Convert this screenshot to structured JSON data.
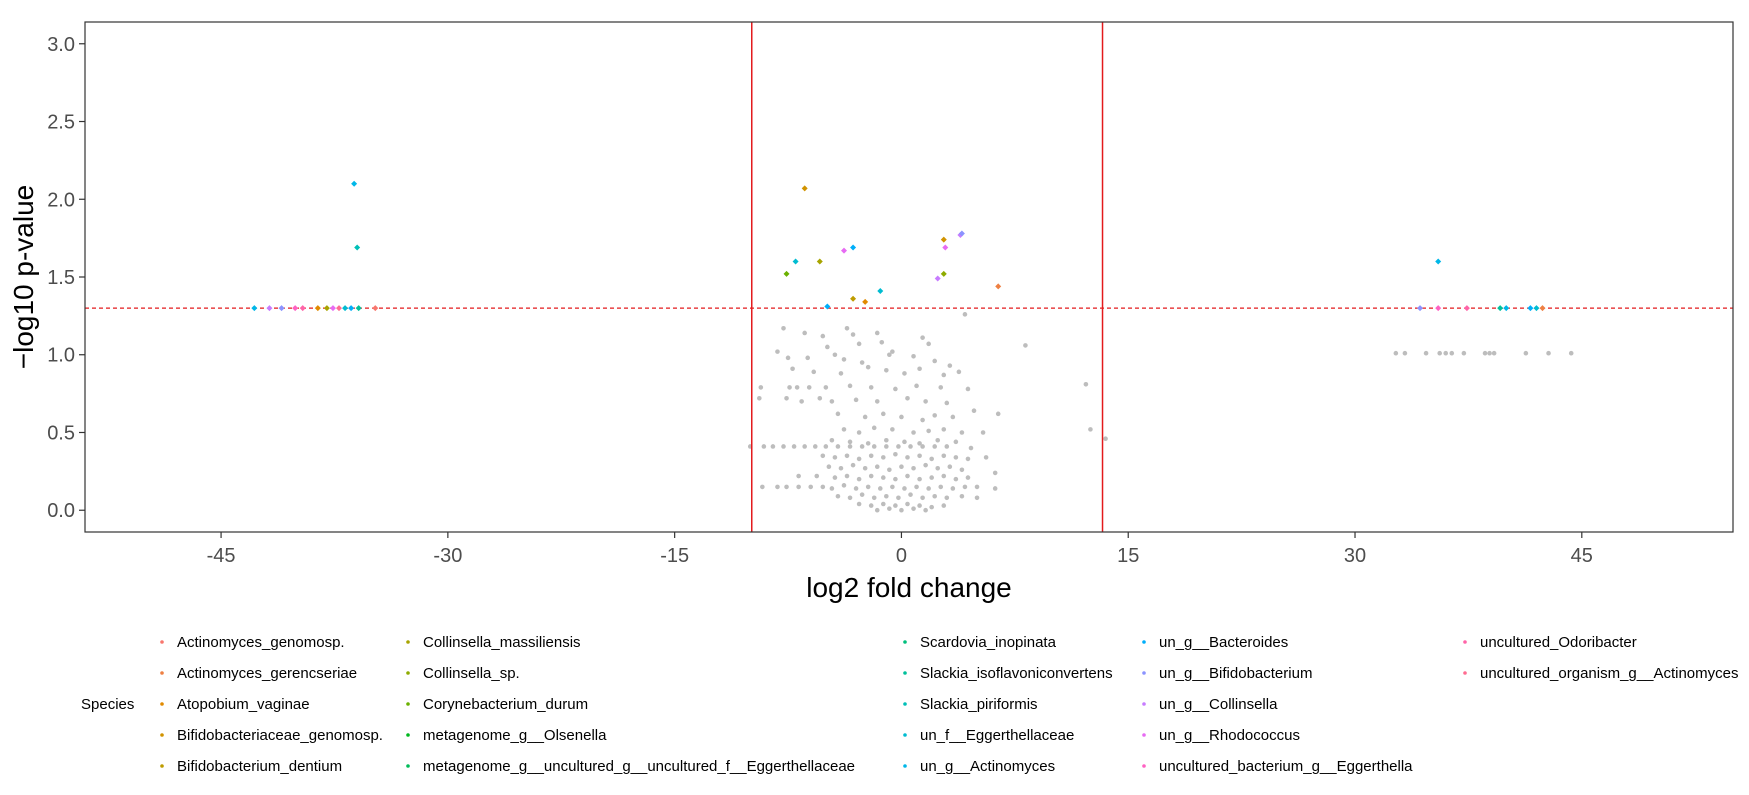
{
  "chart_data": {
    "type": "scatter",
    "title": "",
    "xlabel": "log2 fold change",
    "ylabel": "−log10 p-value",
    "xlim": [
      -54,
      55
    ],
    "ylim": [
      -0.14,
      3.14
    ],
    "x_ticks": [
      -45,
      -30,
      -15,
      0,
      15,
      30,
      45
    ],
    "x_tick_labels": [
      "-45",
      "-30",
      "-15",
      "0",
      "15",
      "30",
      "45"
    ],
    "y_ticks": [
      0,
      0.5,
      1,
      1.5,
      2,
      2.5,
      3
    ],
    "y_tick_labels": [
      "0.0",
      "0.5",
      "1.0",
      "1.5",
      "2.0",
      "2.5",
      "3.0"
    ],
    "grid": false,
    "thresholds": {
      "vertical": [
        -9.9,
        13.3
      ],
      "horizontal": 1.3,
      "color": "#e31a1c"
    },
    "legend": {
      "title": "Species",
      "placement": "bottom",
      "entries": [
        {
          "name": "Actinomyces_genomosp.",
          "color": "#F8766D"
        },
        {
          "name": "Actinomyces_gerencseriae",
          "color": "#EE8043"
        },
        {
          "name": "Atopobium_vaginae",
          "color": "#E18A00"
        },
        {
          "name": "Bifidobacteriaceae_genomosp.",
          "color": "#D19300"
        },
        {
          "name": "Bifidobacterium_dentium",
          "color": "#BE9C00"
        },
        {
          "name": "Collinsella_massiliensis",
          "color": "#A8A400"
        },
        {
          "name": "Collinsella_sp.",
          "color": "#8EAB00"
        },
        {
          "name": "Corynebacterium_durum",
          "color": "#6BB100"
        },
        {
          "name": "metagenome_g__Olsenella",
          "color": "#00B81F"
        },
        {
          "name": "metagenome_g__uncultured_g__uncultured_f__Eggerthellaceae",
          "color": "#00BC59"
        },
        {
          "name": "Scardovia_inopinata",
          "color": "#00BF7D"
        },
        {
          "name": "Slackia_isoflavoniconvertens",
          "color": "#00C09B"
        },
        {
          "name": "Slackia_piriformis",
          "color": "#00BFB7"
        },
        {
          "name": "un_f__Eggerthellaceae",
          "color": "#00BCD1"
        },
        {
          "name": "un_g__Actinomyces",
          "color": "#00B7E8"
        },
        {
          "name": "un_g__Bacteroides",
          "color": "#00AEFA"
        },
        {
          "name": "un_g__Bifidobacterium",
          "color": "#8B93FF"
        },
        {
          "name": "un_g__Collinsella",
          "color": "#C77CFF"
        },
        {
          "name": "un_g__Rhodococcus",
          "color": "#E76BF3"
        },
        {
          "name": "uncultured_bacterium_g__Eggerthella",
          "color": "#FF61C3"
        },
        {
          "name": "uncultured_Odoribacter",
          "color": "#FF64A8"
        },
        {
          "name": "uncultured_organism_g__Actinomyces",
          "color": "#FF6C91"
        }
      ]
    },
    "significant_points": [
      {
        "x": -36.2,
        "y": 2.1,
        "species": "un_g__Actinomyces"
      },
      {
        "x": -36.0,
        "y": 1.69,
        "species": "Slackia_piriformis"
      },
      {
        "x": -42.8,
        "y": 1.3,
        "species": "un_g__Actinomyces"
      },
      {
        "x": -41.8,
        "y": 1.3,
        "species": "un_g__Collinsella"
      },
      {
        "x": -41.0,
        "y": 1.3,
        "species": "un_g__Bifidobacterium"
      },
      {
        "x": -40.1,
        "y": 1.3,
        "species": "uncultured_bacterium_g__Eggerthella"
      },
      {
        "x": -39.6,
        "y": 1.3,
        "species": "uncultured_Odoribacter"
      },
      {
        "x": -38.6,
        "y": 1.3,
        "species": "Atopobium_vaginae"
      },
      {
        "x": -38.0,
        "y": 1.3,
        "species": "Collinsella_massiliensis"
      },
      {
        "x": -37.6,
        "y": 1.3,
        "species": "un_g__Rhodococcus"
      },
      {
        "x": -37.2,
        "y": 1.3,
        "species": "uncultured_organism_g__Actinomyces"
      },
      {
        "x": -36.8,
        "y": 1.3,
        "species": "un_f__Eggerthellaceae"
      },
      {
        "x": -36.4,
        "y": 1.3,
        "species": "un_g__Bacteroides"
      },
      {
        "x": -35.9,
        "y": 1.3,
        "species": "Slackia_isoflavoniconvertens"
      },
      {
        "x": -34.8,
        "y": 1.3,
        "species": "Actinomyces_genomosp."
      },
      {
        "x": -6.4,
        "y": 2.07,
        "species": "Bifidobacteriaceae_genomosp."
      },
      {
        "x": -7.6,
        "y": 1.52,
        "species": "Corynebacterium_durum"
      },
      {
        "x": -7.0,
        "y": 1.6,
        "species": "un_f__Eggerthellaceae"
      },
      {
        "x": -5.4,
        "y": 1.6,
        "species": "Collinsella_massiliensis"
      },
      {
        "x": -4.9,
        "y": 1.31,
        "species": "un_g__Bacteroides"
      },
      {
        "x": -3.8,
        "y": 1.67,
        "species": "un_g__Rhodococcus"
      },
      {
        "x": -3.2,
        "y": 1.69,
        "species": "un_g__Bacteroides"
      },
      {
        "x": -3.2,
        "y": 1.36,
        "species": "Bifidobacterium_dentium"
      },
      {
        "x": -2.4,
        "y": 1.34,
        "species": "Atopobium_vaginae"
      },
      {
        "x": -1.4,
        "y": 1.41,
        "species": "un_f__Eggerthellaceae"
      },
      {
        "x": 2.4,
        "y": 1.49,
        "species": "un_g__Collinsella"
      },
      {
        "x": 2.8,
        "y": 1.74,
        "species": "Bifidobacteriaceae_genomosp."
      },
      {
        "x": 2.8,
        "y": 1.52,
        "species": "Collinsella_sp."
      },
      {
        "x": 2.9,
        "y": 1.69,
        "species": "un_g__Rhodococcus"
      },
      {
        "x": 3.9,
        "y": 1.77,
        "species": "un_g__Collinsella"
      },
      {
        "x": 4.0,
        "y": 1.78,
        "species": "un_g__Bifidobacterium"
      },
      {
        "x": 6.4,
        "y": 1.44,
        "species": "Actinomyces_gerencseriae"
      },
      {
        "x": 35.5,
        "y": 1.6,
        "species": "un_g__Actinomyces"
      },
      {
        "x": 34.3,
        "y": 1.3,
        "species": "un_g__Bifidobacterium"
      },
      {
        "x": 35.5,
        "y": 1.3,
        "species": "uncultured_bacterium_g__Eggerthella"
      },
      {
        "x": 37.4,
        "y": 1.3,
        "species": "uncultured_Odoribacter"
      },
      {
        "x": 39.6,
        "y": 1.3,
        "species": "Slackia_isoflavoniconvertens"
      },
      {
        "x": 40.0,
        "y": 1.3,
        "species": "un_g__Actinomyces"
      },
      {
        "x": 41.6,
        "y": 1.3,
        "species": "un_g__Bacteroides"
      },
      {
        "x": 42.0,
        "y": 1.3,
        "species": "un_f__Eggerthellaceae"
      },
      {
        "x": 42.4,
        "y": 1.3,
        "species": "Actinomyces_gerencseriae"
      }
    ],
    "nonsignificant_color": "#bdbdbd",
    "nonsignificant_points": [
      [
        -7.8,
        1.17
      ],
      [
        -6.4,
        1.14
      ],
      [
        -5.2,
        1.12
      ],
      [
        -4.9,
        1.05
      ],
      [
        -3.6,
        1.17
      ],
      [
        -3.2,
        1.13
      ],
      [
        -2.8,
        1.07
      ],
      [
        -1.6,
        1.14
      ],
      [
        -1.3,
        1.08
      ],
      [
        -0.6,
        1.02
      ],
      [
        1.4,
        1.11
      ],
      [
        1.8,
        1.07
      ],
      [
        4.2,
        1.26
      ],
      [
        8.2,
        1.06
      ],
      [
        -8.2,
        1.02
      ],
      [
        -7.5,
        0.98
      ],
      [
        -6.2,
        0.98
      ],
      [
        -4.4,
        1.0
      ],
      [
        -3.8,
        0.97
      ],
      [
        -2.6,
        0.95
      ],
      [
        -0.8,
        1.0
      ],
      [
        0.8,
        0.99
      ],
      [
        2.2,
        0.96
      ],
      [
        3.2,
        0.93
      ],
      [
        -7.2,
        0.91
      ],
      [
        -5.8,
        0.89
      ],
      [
        -4.0,
        0.88
      ],
      [
        -2.2,
        0.92
      ],
      [
        -1.0,
        0.9
      ],
      [
        0.2,
        0.88
      ],
      [
        1.2,
        0.91
      ],
      [
        2.8,
        0.87
      ],
      [
        3.8,
        0.89
      ],
      [
        12.2,
        0.81
      ],
      [
        -9.3,
        0.79
      ],
      [
        -7.4,
        0.79
      ],
      [
        -6.9,
        0.79
      ],
      [
        -6.1,
        0.79
      ],
      [
        -5.0,
        0.79
      ],
      [
        -3.4,
        0.8
      ],
      [
        -2.0,
        0.79
      ],
      [
        -0.4,
        0.78
      ],
      [
        1.0,
        0.8
      ],
      [
        2.6,
        0.79
      ],
      [
        4.4,
        0.78
      ],
      [
        -9.4,
        0.72
      ],
      [
        -7.6,
        0.72
      ],
      [
        -6.6,
        0.7
      ],
      [
        -5.4,
        0.72
      ],
      [
        -4.6,
        0.7
      ],
      [
        -3.0,
        0.71
      ],
      [
        -1.6,
        0.7
      ],
      [
        0.4,
        0.72
      ],
      [
        1.6,
        0.7
      ],
      [
        3.0,
        0.69
      ],
      [
        4.8,
        0.64
      ],
      [
        6.4,
        0.62
      ],
      [
        -4.2,
        0.62
      ],
      [
        -2.4,
        0.6
      ],
      [
        -1.2,
        0.62
      ],
      [
        0.0,
        0.6
      ],
      [
        1.4,
        0.58
      ],
      [
        2.2,
        0.61
      ],
      [
        3.4,
        0.6
      ],
      [
        -3.8,
        0.52
      ],
      [
        -2.8,
        0.5
      ],
      [
        -1.8,
        0.53
      ],
      [
        -0.6,
        0.52
      ],
      [
        0.8,
        0.5
      ],
      [
        1.8,
        0.51
      ],
      [
        2.8,
        0.52
      ],
      [
        4.0,
        0.5
      ],
      [
        5.4,
        0.5
      ],
      [
        12.5,
        0.52
      ],
      [
        13.5,
        0.46
      ],
      [
        -4.6,
        0.45
      ],
      [
        -3.4,
        0.44
      ],
      [
        -2.2,
        0.43
      ],
      [
        -1.0,
        0.45
      ],
      [
        0.2,
        0.44
      ],
      [
        1.2,
        0.43
      ],
      [
        2.4,
        0.45
      ],
      [
        3.6,
        0.44
      ],
      [
        4.6,
        0.4
      ],
      [
        -10.0,
        0.41
      ],
      [
        -9.1,
        0.41
      ],
      [
        -8.5,
        0.41
      ],
      [
        -7.8,
        0.41
      ],
      [
        -7.1,
        0.41
      ],
      [
        -6.4,
        0.41
      ],
      [
        -5.7,
        0.41
      ],
      [
        -5.0,
        0.41
      ],
      [
        -4.2,
        0.41
      ],
      [
        -3.4,
        0.41
      ],
      [
        -2.6,
        0.41
      ],
      [
        -1.8,
        0.41
      ],
      [
        -1.0,
        0.41
      ],
      [
        -0.2,
        0.41
      ],
      [
        0.6,
        0.41
      ],
      [
        1.4,
        0.41
      ],
      [
        2.2,
        0.41
      ],
      [
        3.0,
        0.41
      ],
      [
        -5.2,
        0.35
      ],
      [
        -4.4,
        0.34
      ],
      [
        -3.6,
        0.35
      ],
      [
        -2.8,
        0.33
      ],
      [
        -2.0,
        0.35
      ],
      [
        -1.2,
        0.34
      ],
      [
        -0.4,
        0.36
      ],
      [
        0.4,
        0.34
      ],
      [
        1.2,
        0.35
      ],
      [
        2.0,
        0.33
      ],
      [
        2.8,
        0.35
      ],
      [
        3.6,
        0.34
      ],
      [
        4.4,
        0.33
      ],
      [
        5.6,
        0.34
      ],
      [
        -4.8,
        0.28
      ],
      [
        -4.0,
        0.27
      ],
      [
        -3.2,
        0.29
      ],
      [
        -2.4,
        0.27
      ],
      [
        -1.6,
        0.28
      ],
      [
        -0.8,
        0.26
      ],
      [
        0.0,
        0.28
      ],
      [
        0.8,
        0.27
      ],
      [
        1.6,
        0.29
      ],
      [
        2.4,
        0.27
      ],
      [
        3.2,
        0.28
      ],
      [
        4.0,
        0.26
      ],
      [
        6.2,
        0.24
      ],
      [
        -6.8,
        0.22
      ],
      [
        -5.6,
        0.22
      ],
      [
        -4.4,
        0.21
      ],
      [
        -3.6,
        0.22
      ],
      [
        -2.8,
        0.2
      ],
      [
        -2.0,
        0.22
      ],
      [
        -1.2,
        0.21
      ],
      [
        -0.4,
        0.2
      ],
      [
        0.4,
        0.22
      ],
      [
        1.2,
        0.2
      ],
      [
        2.0,
        0.21
      ],
      [
        2.8,
        0.22
      ],
      [
        3.6,
        0.2
      ],
      [
        4.4,
        0.21
      ],
      [
        -9.2,
        0.15
      ],
      [
        -8.2,
        0.15
      ],
      [
        -7.6,
        0.15
      ],
      [
        -6.8,
        0.15
      ],
      [
        -6.0,
        0.15
      ],
      [
        -5.2,
        0.15
      ],
      [
        -4.6,
        0.14
      ],
      [
        -3.8,
        0.16
      ],
      [
        -3.0,
        0.14
      ],
      [
        -2.2,
        0.15
      ],
      [
        -1.4,
        0.14
      ],
      [
        -0.6,
        0.15
      ],
      [
        0.2,
        0.14
      ],
      [
        1.0,
        0.15
      ],
      [
        1.8,
        0.14
      ],
      [
        2.6,
        0.15
      ],
      [
        3.4,
        0.14
      ],
      [
        4.2,
        0.15
      ],
      [
        5.0,
        0.15
      ],
      [
        6.2,
        0.14
      ],
      [
        -4.2,
        0.09
      ],
      [
        -3.4,
        0.08
      ],
      [
        -2.6,
        0.1
      ],
      [
        -1.8,
        0.08
      ],
      [
        -1.0,
        0.09
      ],
      [
        -0.2,
        0.08
      ],
      [
        0.6,
        0.1
      ],
      [
        1.4,
        0.08
      ],
      [
        2.2,
        0.09
      ],
      [
        3.0,
        0.08
      ],
      [
        4.0,
        0.09
      ],
      [
        5.0,
        0.08
      ],
      [
        -2.8,
        0.04
      ],
      [
        -2.0,
        0.03
      ],
      [
        -1.2,
        0.04
      ],
      [
        -0.4,
        0.03
      ],
      [
        0.4,
        0.04
      ],
      [
        1.2,
        0.03
      ],
      [
        2.0,
        0.02
      ],
      [
        2.8,
        0.03
      ],
      [
        -1.6,
        0.0
      ],
      [
        -0.8,
        0.01
      ],
      [
        0.0,
        0.0
      ],
      [
        0.8,
        0.01
      ],
      [
        1.6,
        0.0
      ],
      [
        32.7,
        1.01
      ],
      [
        33.3,
        1.01
      ],
      [
        34.7,
        1.01
      ],
      [
        35.6,
        1.01
      ],
      [
        36.0,
        1.01
      ],
      [
        36.4,
        1.01
      ],
      [
        37.2,
        1.01
      ],
      [
        38.6,
        1.01
      ],
      [
        38.9,
        1.01
      ],
      [
        39.2,
        1.01
      ],
      [
        41.3,
        1.01
      ],
      [
        42.8,
        1.01
      ],
      [
        44.3,
        1.01
      ]
    ]
  }
}
